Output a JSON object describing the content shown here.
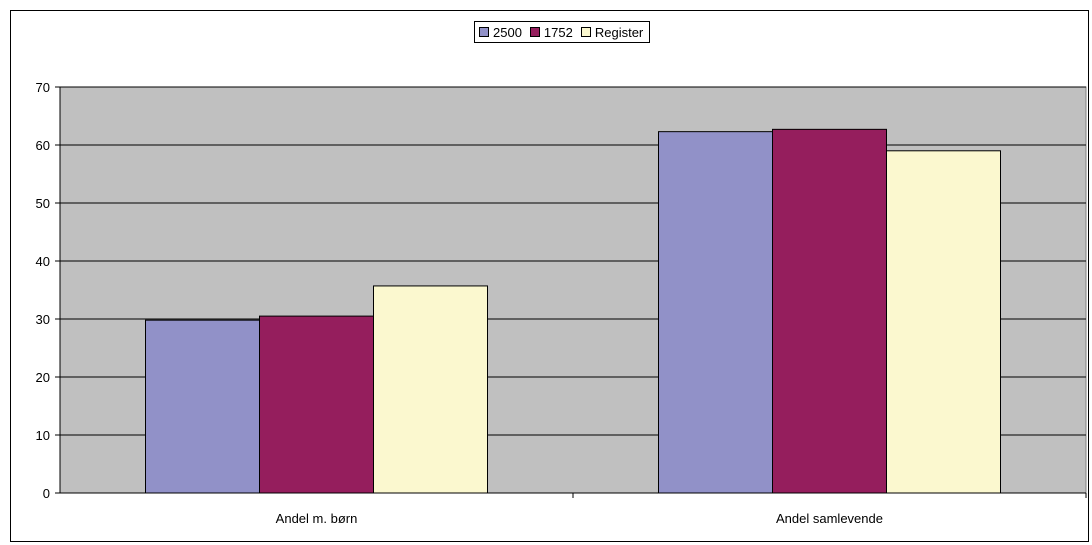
{
  "chart_data": {
    "type": "bar",
    "categories": [
      "Andel m. børn",
      "Andel samlevende"
    ],
    "series": [
      {
        "name": "2500",
        "values": [
          29.8,
          62.3
        ],
        "color": "#9191c8"
      },
      {
        "name": "1752",
        "values": [
          30.5,
          62.7
        ],
        "color": "#951e5d"
      },
      {
        "name": "Register",
        "values": [
          35.7,
          59.0
        ],
        "color": "#fbf8cf"
      }
    ],
    "ylim": [
      0,
      70
    ],
    "yticks": [
      0,
      10,
      20,
      30,
      40,
      50,
      60,
      70
    ],
    "grid": true,
    "legend_position": "top-center",
    "plot_background": "#c0c0c0"
  }
}
